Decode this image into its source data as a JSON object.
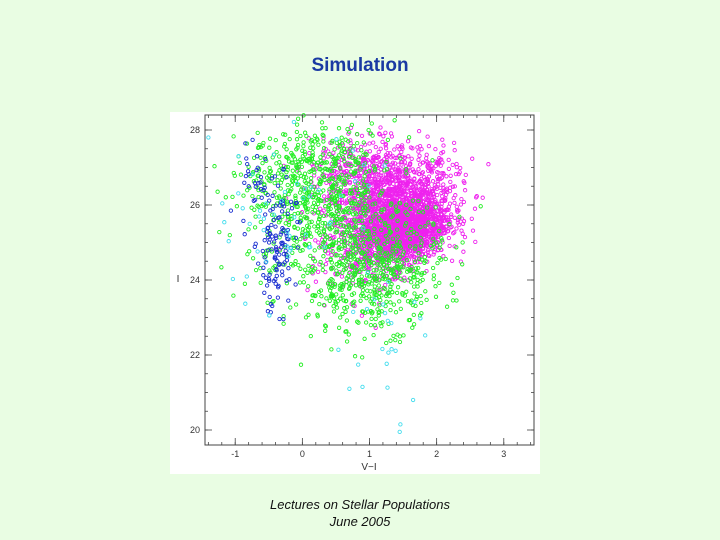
{
  "slide": {
    "title": "Simulation",
    "caption_line1": "Lectures on Stellar Populations",
    "caption_line2": "June 2005"
  },
  "chart_data": {
    "type": "scatter",
    "xlabel": "V−I",
    "ylabel": "I",
    "xlim": [
      -1.45,
      3.45
    ],
    "ylim": [
      28.4,
      19.6
    ],
    "y_inverted": true,
    "x_ticks": [
      -1,
      0,
      1,
      2,
      3
    ],
    "y_ticks": [
      20,
      22,
      24,
      26,
      28
    ],
    "grid": false,
    "marker": "open-circle",
    "series": [
      {
        "color": "#ee22ee",
        "clouds": [
          {
            "x": 1.35,
            "y": 25.7,
            "sx": 0.45,
            "sy": 0.75,
            "corr": 0.35,
            "n": 1500
          },
          {
            "x": 1.55,
            "y": 25.3,
            "sx": 0.3,
            "sy": 0.45,
            "corr": 0.3,
            "n": 900
          },
          {
            "x": 0.9,
            "y": 26.9,
            "sx": 0.4,
            "sy": 0.5,
            "corr": 0.2,
            "n": 350
          }
        ]
      },
      {
        "color": "#22ee22",
        "clouds": [
          {
            "x": 0.3,
            "y": 26.0,
            "sx": 0.55,
            "sy": 1.0,
            "corr": 0.2,
            "n": 550
          },
          {
            "x": 1.1,
            "y": 24.2,
            "sx": 0.5,
            "sy": 0.8,
            "corr": 0.2,
            "n": 550
          },
          {
            "x": -0.1,
            "y": 27.0,
            "sx": 0.5,
            "sy": 0.6,
            "corr": 0.1,
            "n": 180
          }
        ]
      },
      {
        "color": "#1a2fd0",
        "clouds": [
          {
            "x": -0.4,
            "y": 24.6,
            "sx": 0.15,
            "sy": 0.7,
            "corr": 0.0,
            "n": 95
          },
          {
            "x": -0.6,
            "y": 26.2,
            "sx": 0.25,
            "sy": 0.55,
            "corr": 0.0,
            "n": 50
          }
        ]
      },
      {
        "color": "#44ddee",
        "clouds": [
          {
            "x": -0.2,
            "y": 25.5,
            "sx": 0.7,
            "sy": 1.3,
            "corr": 0.0,
            "n": 55
          },
          {
            "x": 1.3,
            "y": 22.6,
            "sx": 0.25,
            "sy": 0.6,
            "corr": 0.0,
            "n": 18
          }
        ],
        "points": [
          [
            1.45,
            19.95
          ],
          [
            1.46,
            20.15
          ],
          [
            0.7,
            21.1
          ],
          [
            1.65,
            20.8
          ],
          [
            -1.4,
            27.8
          ],
          [
            -0.95,
            27.3
          ]
        ]
      }
    ]
  }
}
